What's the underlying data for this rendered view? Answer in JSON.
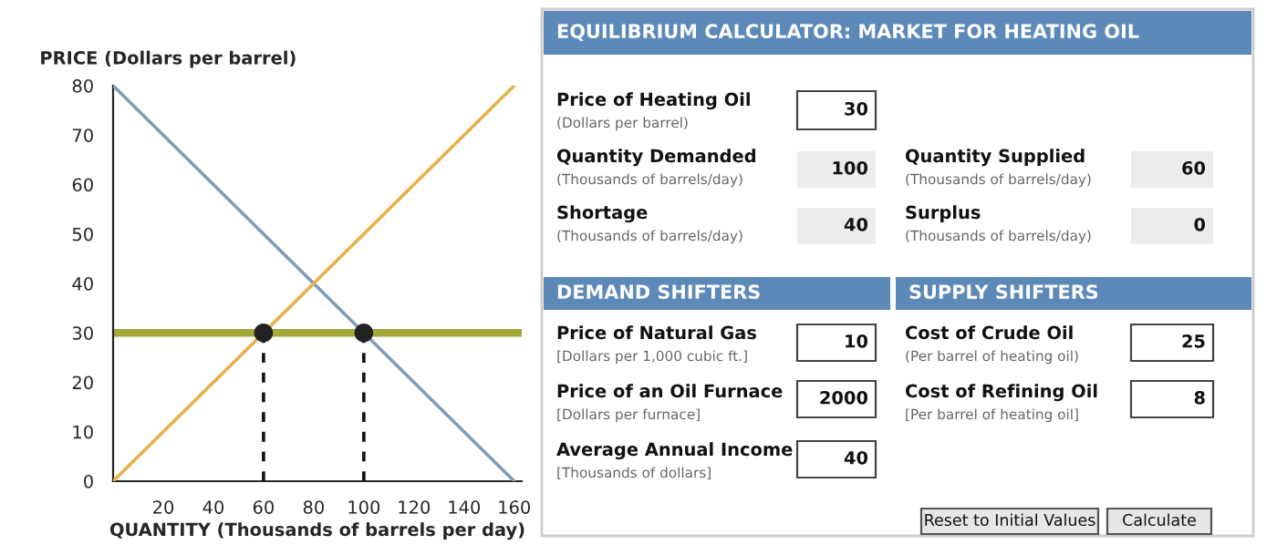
{
  "chart_data": [
    {
      "type": "line",
      "xlabel": "QUANTITY (Thousands of barrels per day)",
      "ylabel": "PRICE (Dollars per barrel)",
      "xlim": [
        0,
        163
      ],
      "xticks": [
        20,
        40,
        60,
        80,
        100,
        120,
        140,
        160
      ],
      "ylim": [
        0,
        80
      ],
      "yticks": [
        0,
        10,
        20,
        30,
        40,
        50,
        60,
        70,
        80
      ],
      "grid": false,
      "series": [
        {
          "type": "line",
          "color": "#7f9cb8",
          "x": [
            0,
            160
          ],
          "values": [
            80,
            0
          ]
        },
        {
          "type": "line",
          "color": "#e8b04c",
          "x": [
            0,
            160
          ],
          "values": [
            0,
            80
          ]
        },
        {
          "type": "line",
          "color": "#111111",
          "line_style": "dashed",
          "x": [
            60,
            60
          ],
          "values": [
            0,
            30
          ]
        },
        {
          "type": "line",
          "color": "#111111",
          "line_style": "dashed",
          "x": [
            100,
            100
          ],
          "values": [
            0,
            30
          ]
        },
        {
          "type": "scatter",
          "color": "#222222",
          "marker": "circle",
          "x": [
            60,
            100
          ],
          "values": [
            30,
            30
          ]
        }
      ],
      "ref_lines": [
        {
          "axis": "y",
          "value": 30,
          "color": "#a3a838"
        }
      ]
    },
    {
      "type": "other",
      "title": "EQUILIBRIUM CALCULATOR: MARKET FOR HEATING OIL",
      "annotations": [
        "Price of Heating Oil",
        "(Dollars per barrel)",
        "30",
        "Quantity Demanded",
        "(Thousands of barrels/day)",
        "100",
        "Quantity Supplied",
        "(Thousands of barrels/day)",
        "60",
        "Shortage",
        "(Thousands of barrels/day)",
        "40",
        "Surplus",
        "(Thousands of barrels/day)",
        "0",
        "DEMAND SHIFTERS",
        "SUPPLY SHIFTERS",
        "Price of Natural Gas",
        "[Dollars per 1,000 cubic ft.]",
        "10",
        "Cost of Crude Oil",
        "(Per barrel of heating oil)",
        "25",
        "Price of an Oil Furnace",
        "[Dollars per furnace]",
        "2000",
        "Cost of Refining Oil",
        "[Per barrel of heating oil]",
        "8",
        "Average Annual Income",
        "[Thousands of dollars]",
        "40",
        "Reset to Initial Values",
        "Calculate"
      ]
    }
  ]
}
